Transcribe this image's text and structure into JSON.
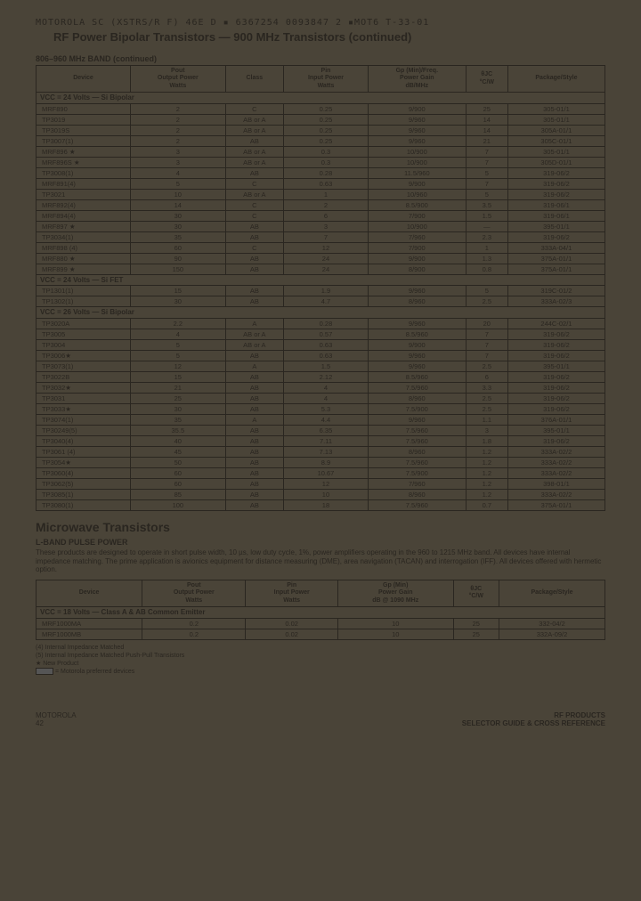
{
  "header_code": "MOTOROLA SC (XSTRS/R F)   46E D  ▪ 6367254 0093847 2 ▪MOT6 T-33-01",
  "main_title": "RF Power Bipolar Transistors — 900 MHz Transistors (continued)",
  "band_title": "806–960 MHz BAND (continued)",
  "headers1": {
    "h1": "Device",
    "h2a": "Pout",
    "h2b": "Output Power",
    "h2c": "Watts",
    "h3": "Class",
    "h4a": "Pin",
    "h4b": "Input Power",
    "h4c": "Watts",
    "h5a": "Gp (Min)/Freq.",
    "h5b": "Power Gain",
    "h5c": "dB/MHz",
    "h6a": "θJC",
    "h6b": "°C/W",
    "h7": "Package/Style"
  },
  "sec1": "VCC = 24 Volts — Si Bipolar",
  "t1": [
    [
      "MRF890",
      "2",
      "C",
      "0.25",
      "9/900",
      "25",
      "305-01/1"
    ],
    [
      "TP3019",
      "2",
      "AB or A",
      "0.25",
      "9/960",
      "14",
      "305-01/1"
    ],
    [
      "TP3019S",
      "2",
      "AB or A",
      "0.25",
      "9/960",
      "14",
      "305A-01/1"
    ],
    [
      "TP3007(1)",
      "2",
      "AB",
      "0.25",
      "9/960",
      "21",
      "305C-01/1"
    ],
    [
      "MRF896 ★",
      "3",
      "AB or A",
      "0.3",
      "10/900",
      "7",
      "305-01/1"
    ],
    [
      "MRF896S ★",
      "3",
      "AB or A",
      "0.3",
      "10/900",
      "7",
      "305D-01/1"
    ],
    [
      "TP3008(1)",
      "4",
      "AB",
      "0.28",
      "11.5/960",
      "5",
      "319-06/2"
    ],
    [
      "MRF891(4)",
      "5",
      "C",
      "0.63",
      "9/900",
      "7",
      "319-06/2"
    ],
    [
      "TP3021",
      "10",
      "AB or A",
      "1",
      "10/960",
      "5",
      "319-06/2"
    ],
    [
      "MRF892(4)",
      "14",
      "C",
      "2",
      "8.5/900",
      "3.5",
      "319-06/1"
    ],
    [
      "MRF894(4)",
      "30",
      "C",
      "6",
      "7/900",
      "1.5",
      "319-06/1"
    ],
    [
      "MRF897 ★",
      "30",
      "AB",
      "3",
      "10/900",
      "—",
      "395-01/1"
    ],
    [
      "TP3034(1)",
      "35",
      "AB",
      "7",
      "7/960",
      "2.3",
      "319-06/2"
    ],
    [
      "MRF898 (4)",
      "60",
      "C",
      "12",
      "7/900",
      "1",
      "333A-04/1"
    ],
    [
      "MRF880 ★",
      "90",
      "AB",
      "24",
      "9/900",
      "1.3",
      "375A-01/1"
    ],
    [
      "MRF899 ★",
      "150",
      "AB",
      "24",
      "8/900",
      "0.8",
      "375A-01/1"
    ]
  ],
  "sec2": "VCC = 24 Volts — Si FET",
  "t2": [
    [
      "TP1301(1)",
      "15",
      "AB",
      "1.9",
      "9/960",
      "5",
      "319C-01/2"
    ],
    [
      "TP1302(1)",
      "30",
      "AB",
      "4.7",
      "8/960",
      "2.5",
      "333A-02/3"
    ]
  ],
  "sec3": "VCC = 26 Volts — Si Bipolar",
  "t3": [
    [
      "TP3020A",
      "2.2",
      "A",
      "0.28",
      "9/960",
      "20",
      "244C-02/1"
    ],
    [
      "TP3005",
      "4",
      "AB or A",
      "0.57",
      "8.5/960",
      "7",
      "319-06/2"
    ],
    [
      "TP3004",
      "5",
      "AB or A",
      "0.63",
      "9/900",
      "7",
      "319-06/2"
    ],
    [
      "TP3006★",
      "5",
      "AB",
      "0.63",
      "9/960",
      "7",
      "319-06/2"
    ],
    [
      "TP3073(1)",
      "12",
      "A",
      "1.5",
      "9/960",
      "2.5",
      "395-01/1"
    ],
    [
      "TP3022B",
      "15",
      "AB",
      "2.12",
      "8.5/960",
      "6",
      "319-06/2"
    ],
    [
      "TP3032★",
      "21",
      "AB",
      "4",
      "7.5/960",
      "3.3",
      "319-06/2"
    ],
    [
      "TP3031",
      "25",
      "AB",
      "4",
      "8/960",
      "2.5",
      "319-06/2"
    ],
    [
      "TP3033★",
      "30",
      "AB",
      "5.3",
      "7.5/900",
      "2.5",
      "319-06/2"
    ],
    [
      "TP3074(1)",
      "35",
      "A",
      "4.4",
      "9/960",
      "1.1",
      "376A-01/1"
    ],
    [
      "TP30249(5)",
      "35.5",
      "AB",
      "6.35",
      "7.5/960",
      "3",
      "395-01/1"
    ],
    [
      "TP3040(4)",
      "40",
      "AB",
      "7.11",
      "7.5/960",
      "1.8",
      "319-06/2"
    ],
    [
      "TP3061 (4)",
      "45",
      "AB",
      "7.13",
      "8/960",
      "1.2",
      "333A-02/2"
    ],
    [
      "TP3054★",
      "50",
      "AB",
      "8.9",
      "7.5/960",
      "1.2",
      "333A-02/2"
    ],
    [
      "TP3060(4)",
      "60",
      "AB",
      "10.67",
      "7.5/900",
      "1.2",
      "333A-02/2"
    ],
    [
      "TP3062(5)",
      "60",
      "AB",
      "12",
      "7/960",
      "1.2",
      "398-01/1"
    ],
    [
      "TP3085(1)",
      "85",
      "AB",
      "10",
      "8/960",
      "1.2",
      "333A-02/2"
    ],
    [
      "TP3080(1)",
      "100",
      "AB",
      "18",
      "7.5/960",
      "0.7",
      "375A-01/1"
    ]
  ],
  "microwave_title": "Microwave Transistors",
  "subhead": "L-BAND PULSE POWER",
  "para": "These products are designed to operate in short pulse width, 10 µs, low duty cycle, 1%, power amplifiers operating in the 960 to 1215 MHz band. All devices have internal impedance matching. The prime application is avionics equipment for distance measuring (DME), area navigation (TACAN) and interrogation (IFF). All devices offered with hermetic option.",
  "headers2": {
    "h1": "Device",
    "h2a": "Pout",
    "h2b": "Output Power",
    "h2c": "Watts",
    "h4a": "Pin",
    "h4b": "Input Power",
    "h4c": "Watts",
    "h5a": "Gp (Min)",
    "h5b": "Power Gain",
    "h5c": "dB @ 1090 MHz",
    "h6a": "θJC",
    "h6b": "°C/W",
    "h7": "Package/Style"
  },
  "sec4": "VCC = 18 Volts — Class A & AB Common Emitter",
  "t4": [
    [
      "MRF1000MA",
      "0.2",
      "0.02",
      "10",
      "25",
      "332-04/2"
    ],
    [
      "MRF1000MB",
      "0.2",
      "0.02",
      "10",
      "25",
      "332A-09/2"
    ]
  ],
  "fn1": "(4) Internal Impedance Matched",
  "fn2": "(5) Internal Impedance Matched Push-Pull Transistors",
  "fn3": "★ New Product",
  "fn4": " = Motorola preferred devices",
  "footer_left1": "MOTOROLA",
  "footer_left2": "42",
  "footer_right1": "RF PRODUCTS",
  "footer_right2": "SELECTOR GUIDE & CROSS REFERENCE"
}
